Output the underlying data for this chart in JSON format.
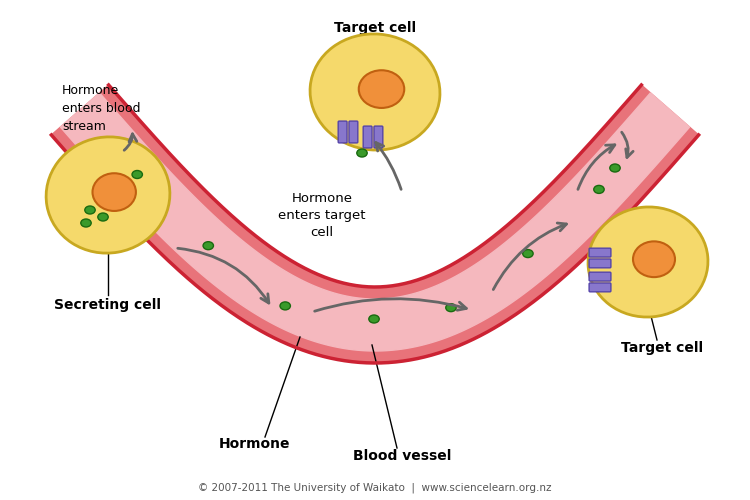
{
  "background_color": "#ffffff",
  "vessel_outer_color": "#e8737a",
  "vessel_inner_color": "#f5b8be",
  "vessel_border_color": "#cc2233",
  "cell_body_color": "#f5d96b",
  "cell_nucleus_color": "#f0903a",
  "hormone_dot_color": "#3a9a2a",
  "receptor_color": "#8877cc",
  "arrow_color": "#666666",
  "text_color": "#000000",
  "footer_color": "#555555",
  "labels": {
    "secreting_cell": "Secreting cell",
    "hormone": "Hormone",
    "blood_vessel": "Blood vessel",
    "hormone_enters_blood": "Hormone\nenters blood\nstream",
    "hormone_enters_target": "Hormone\nenters target\ncell",
    "target_cell_bottom": "Target cell",
    "target_cell_right": "Target cell",
    "footer": "© 2007-2011 The University of Waikato  |  www.sciencelearn.org.nz"
  }
}
